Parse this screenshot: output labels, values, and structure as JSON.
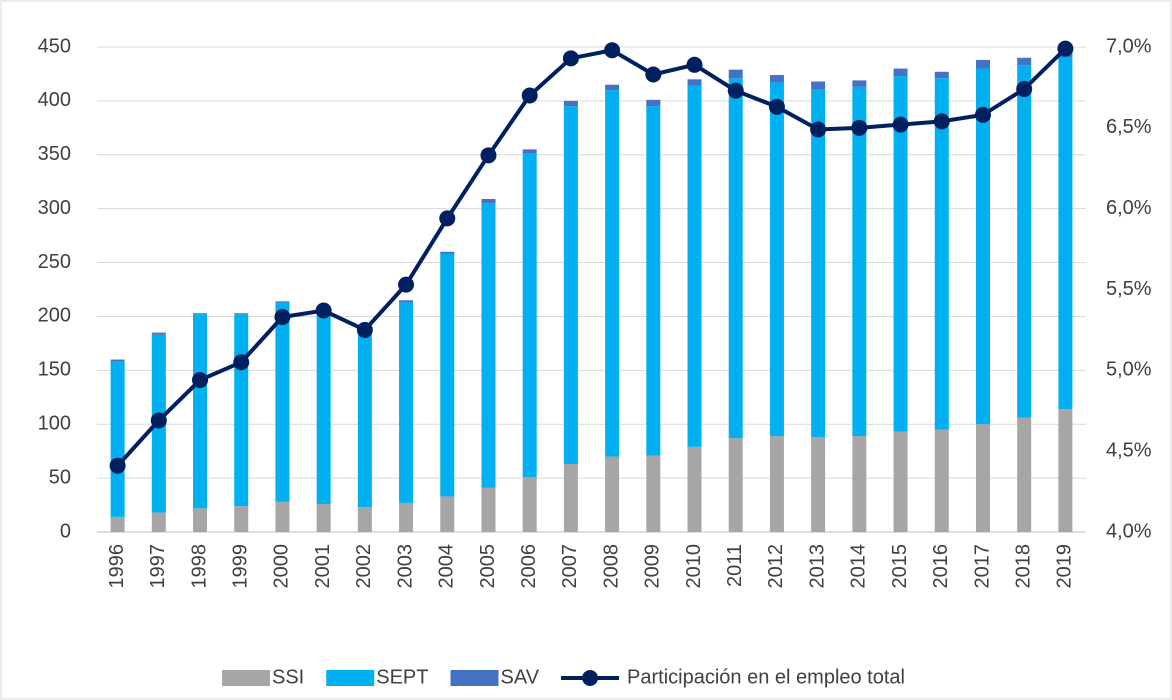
{
  "chart_data": {
    "type": "bar",
    "stacked": true,
    "legend": "bottom",
    "grid": true,
    "categories": [
      "1996",
      "1997",
      "1998",
      "1999",
      "2000",
      "2001",
      "2002",
      "2003",
      "2004",
      "2005",
      "2006",
      "2007",
      "2008",
      "2009",
      "2010",
      "2011",
      "2012",
      "2013",
      "2014",
      "2015",
      "2016",
      "2017",
      "2018",
      "2019"
    ],
    "series": [
      {
        "name": "SSI",
        "color": "#a6a6a6",
        "values": [
          14,
          18,
          22,
          24,
          28,
          26,
          23,
          27,
          33,
          41,
          51,
          63,
          70,
          71,
          79,
          87,
          89,
          88,
          89,
          93,
          95,
          100,
          106,
          114
        ]
      },
      {
        "name": "SEPT",
        "color": "#00b0f0",
        "values": [
          144,
          165,
          180,
          178,
          185,
          178,
          166,
          186,
          225,
          264,
          300,
          332,
          340,
          324,
          335,
          334,
          328,
          323,
          324,
          330,
          326,
          330,
          327,
          326
        ]
      },
      {
        "name": "SAV",
        "color": "#4472c4",
        "values": [
          2,
          2,
          1,
          1,
          1,
          1,
          1,
          2,
          2,
          4,
          4,
          5,
          5,
          6,
          6,
          8,
          7,
          7,
          6,
          7,
          6,
          8,
          7,
          8
        ]
      },
      {
        "name": "Participación en el empleo total",
        "type": "line",
        "axis": "y2",
        "color": "#002060",
        "values": [
          4.41,
          4.69,
          4.94,
          5.05,
          5.33,
          5.37,
          5.25,
          5.53,
          5.94,
          6.33,
          6.7,
          6.93,
          6.98,
          6.83,
          6.89,
          6.73,
          6.63,
          6.49,
          6.5,
          6.52,
          6.54,
          6.58,
          6.74,
          6.99
        ]
      }
    ],
    "ylim": [
      0,
      450
    ],
    "yticks": [
      0,
      50,
      100,
      150,
      200,
      250,
      300,
      350,
      400,
      450
    ],
    "y2lim": [
      4.0,
      7.0
    ],
    "y2ticks": [
      {
        "value": 4.0,
        "label": "4,0%"
      },
      {
        "value": 4.5,
        "label": "4,5%"
      },
      {
        "value": 5.0,
        "label": "5,0%"
      },
      {
        "value": 5.5,
        "label": "5,5%"
      },
      {
        "value": 6.0,
        "label": "6,0%"
      },
      {
        "value": 6.5,
        "label": "6,5%"
      },
      {
        "value": 7.0,
        "label": "7,0%"
      }
    ]
  }
}
